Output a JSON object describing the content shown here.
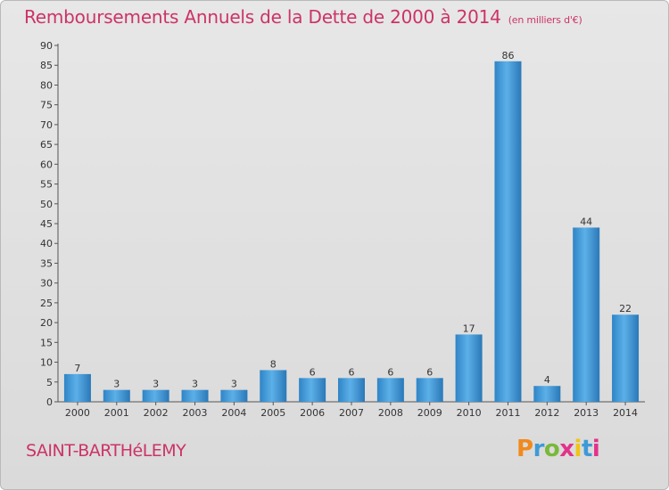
{
  "header": {
    "title": "Remboursements Annuels de la Dette de 2000 à 2014",
    "subtitle": "(en milliers d'€)"
  },
  "footer": {
    "place": "SAINT-BARTHéLEMY",
    "logo": [
      "P",
      "r",
      "o",
      "x",
      "i",
      "t",
      "i"
    ]
  },
  "colors": {
    "title": "#cc3366",
    "bar": "#3d93d6",
    "bar_light": "#5cb0e8",
    "bar_dark": "#2a78b8"
  },
  "chart_data": {
    "type": "bar",
    "title": "Remboursements Annuels de la Dette de 2000 à 2014",
    "subtitle": "(en milliers d'€)",
    "categories": [
      "2000",
      "2001",
      "2002",
      "2003",
      "2004",
      "2005",
      "2006",
      "2007",
      "2008",
      "2009",
      "2010",
      "2011",
      "2012",
      "2013",
      "2014"
    ],
    "values": [
      7,
      3,
      3,
      3,
      3,
      8,
      6,
      6,
      6,
      6,
      17,
      86,
      4,
      44,
      22
    ],
    "value_labels": [
      "7",
      "3",
      "3",
      "3",
      "3",
      "8",
      "6",
      "6",
      "6",
      "6",
      "17",
      "86",
      "4",
      "44",
      "22"
    ],
    "ylim": [
      0,
      90
    ],
    "yticks": [
      0,
      5,
      10,
      15,
      20,
      25,
      30,
      35,
      40,
      45,
      50,
      55,
      60,
      65,
      70,
      75,
      80,
      85,
      90
    ],
    "ytick_labels": [
      "0",
      "5",
      "10",
      "15",
      "20",
      "25",
      "30",
      "35",
      "40",
      "45",
      "50",
      "55",
      "60",
      "65",
      "70",
      "75",
      "80",
      "85",
      "90"
    ],
    "grid": false,
    "legend": "none"
  }
}
